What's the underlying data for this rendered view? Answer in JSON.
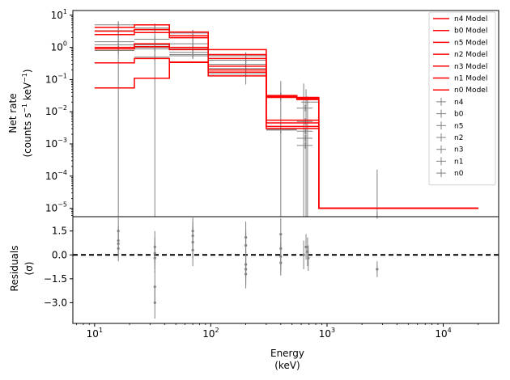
{
  "chart_data": [
    {
      "type": "line",
      "panel": "spectrum",
      "ylabel_line1": "Net rate",
      "ylabel_line2_parts": [
        "(counts s",
        "−1",
        " keV",
        "−1",
        ")"
      ],
      "xscale": "log",
      "yscale": "log",
      "xlim": [
        6.5,
        30000
      ],
      "ylim": [
        5.5e-06,
        14
      ],
      "x_ticks": [
        10,
        100,
        1000,
        10000
      ],
      "x_tick_labels": [
        [
          "10",
          "1"
        ],
        [
          "10",
          "2"
        ],
        [
          "10",
          "3"
        ],
        [
          "10",
          "4"
        ]
      ],
      "y_ticks": [
        1e-05,
        0.0001,
        0.001,
        0.01,
        0.1,
        1,
        10
      ],
      "y_tick_labels": [
        [
          "10",
          "−5"
        ],
        [
          "10",
          "−4"
        ],
        [
          "10",
          "−3"
        ],
        [
          "10",
          "−2"
        ],
        [
          "10",
          "−1"
        ],
        [
          "10",
          "0"
        ],
        [
          "10",
          "1"
        ]
      ],
      "bin_edges": [
        10,
        22,
        44,
        95,
        300,
        550,
        850,
        20000
      ],
      "legend_position": "top-right",
      "colors": {
        "model": "#ff0000",
        "data": "#808080"
      },
      "series": [
        {
          "name": "n4 Model",
          "values": [
            4.2,
            5.0,
            3.0,
            0.85,
            0.032,
            0.028,
            1e-05
          ]
        },
        {
          "name": "b0 Model",
          "values": [
            3.2,
            3.6,
            2.3,
            0.6,
            0.03,
            0.026,
            1e-05
          ]
        },
        {
          "name": "n5 Model",
          "values": [
            2.5,
            2.9,
            2.0,
            0.45,
            0.028,
            0.024,
            1e-05
          ]
        },
        {
          "name": "n2 Model",
          "values": [
            1.0,
            1.3,
            1.0,
            0.26,
            0.0055,
            0.0055,
            1e-05
          ]
        },
        {
          "name": "n3 Model",
          "values": [
            0.9,
            1.05,
            0.85,
            0.2,
            0.0045,
            0.0045,
            1e-05
          ]
        },
        {
          "name": "n1 Model",
          "values": [
            0.33,
            0.45,
            0.35,
            0.17,
            0.0035,
            0.0035,
            1e-05
          ]
        },
        {
          "name": "n0 Model",
          "values": [
            0.055,
            0.11,
            0.34,
            0.13,
            0.003,
            0.003,
            1e-05
          ]
        }
      ],
      "data_series": [
        {
          "name": "n4",
          "points": [
            [
              16,
              5.0,
              10,
              22
            ],
            [
              33,
              1.8,
              22,
              44
            ],
            [
              70,
              2.8,
              44,
              95
            ],
            [
              200,
              0.55,
              95,
              300
            ],
            [
              400,
              0.032,
              300,
              550
            ],
            [
              650,
              0.013,
              550,
              750
            ]
          ]
        },
        {
          "name": "b0",
          "points": [
            [
              16,
              3.3,
              10,
              22
            ],
            [
              33,
              4.0,
              22,
              44
            ],
            [
              70,
              1.3,
              44,
              95
            ],
            [
              200,
              0.4,
              95,
              300
            ],
            [
              400,
              0.03,
              300,
              550
            ],
            [
              680,
              0.02,
              600,
              850
            ]
          ]
        },
        {
          "name": "n5",
          "points": [
            [
              16,
              1.5,
              10,
              22
            ],
            [
              33,
              3.5,
              22,
              44
            ],
            [
              70,
              2.0,
              44,
              95
            ],
            [
              200,
              0.4,
              95,
              300
            ],
            [
              400,
              0.028,
              300,
              550
            ],
            [
              650,
              0.005,
              550,
              750
            ]
          ]
        },
        {
          "name": "n2",
          "points": [
            [
              16,
              1.2,
              10,
              22
            ],
            [
              33,
              0.9,
              22,
              44
            ],
            [
              70,
              0.9,
              44,
              95
            ],
            [
              200,
              0.3,
              95,
              300
            ],
            [
              400,
              0.0028,
              300,
              550
            ],
            [
              650,
              0.0015,
              550,
              750
            ]
          ]
        },
        {
          "name": "n3",
          "points": [
            [
              16,
              0.8,
              10,
              22
            ],
            [
              33,
              1.0,
              22,
              44
            ],
            [
              70,
              0.55,
              44,
              95
            ],
            [
              200,
              0.15,
              95,
              300
            ],
            [
              400,
              0.0027,
              300,
              550
            ],
            [
              650,
              0.0025,
              550,
              750
            ]
          ]
        },
        {
          "name": "n1",
          "points": [
            [
              16,
              2.5,
              10,
              22
            ],
            [
              33,
              0.5,
              22,
              44
            ],
            [
              70,
              0.6,
              44,
              95
            ],
            [
              200,
              0.22,
              95,
              300
            ],
            [
              400,
              0.028,
              300,
              550
            ],
            [
              650,
              0.0009,
              550,
              750
            ]
          ]
        },
        {
          "name": "n0",
          "points": [
            [
              16,
              0.9,
              10,
              22
            ],
            [
              33,
              1.2,
              22,
              44
            ],
            [
              70,
              0.7,
              44,
              95
            ],
            [
              200,
              0.2,
              95,
              300
            ],
            [
              400,
              0.03,
              300,
              550
            ],
            [
              2700,
              6e-06,
              2700,
              2700
            ]
          ]
        }
      ],
      "upper_limit": {
        "x": 2700,
        "y_top": 0.00016
      }
    },
    {
      "type": "scatter",
      "panel": "residuals",
      "ylabel_line1": "Residuals",
      "ylabel_line2": "(σ)",
      "xlabel_line1": "Energy",
      "xlabel_line2": "(keV)",
      "xscale": "log",
      "xlim": [
        6.5,
        30000
      ],
      "ylim": [
        -4.3,
        2.4
      ],
      "y_ticks": [
        1.5,
        0.0,
        -1.5,
        -3.0
      ],
      "y_tick_labels": [
        "1.5",
        "0.0",
        "−1.5",
        "−3.0"
      ],
      "zero_line": 0.0,
      "colors": {
        "points": "#808080",
        "zero_line": "#000000"
      },
      "points": [
        {
          "x": 16,
          "y": 1.5,
          "err": 0.9
        },
        {
          "x": 16,
          "y": 0.7,
          "err": 0.8
        },
        {
          "x": 16,
          "y": 0.4,
          "err": 0.8
        },
        {
          "x": 16,
          "y": 0.9,
          "err": 0.9
        },
        {
          "x": 33,
          "y": 0.5,
          "err": 1.0
        },
        {
          "x": 33,
          "y": 0.1,
          "err": 1.0
        },
        {
          "x": 33,
          "y": -0.2,
          "err": 0.9
        },
        {
          "x": 33,
          "y": -2.0,
          "err": 1.0
        },
        {
          "x": 33,
          "y": -3.0,
          "err": 1.0
        },
        {
          "x": 70,
          "y": 1.5,
          "err": 0.9
        },
        {
          "x": 70,
          "y": 1.2,
          "err": 0.9
        },
        {
          "x": 70,
          "y": 0.8,
          "err": 1.0
        },
        {
          "x": 70,
          "y": 0.3,
          "err": 1.0
        },
        {
          "x": 200,
          "y": 1.1,
          "err": 1.0
        },
        {
          "x": 200,
          "y": 0.6,
          "err": 0.9
        },
        {
          "x": 200,
          "y": -0.6,
          "err": 0.8
        },
        {
          "x": 200,
          "y": -0.9,
          "err": 0.9
        },
        {
          "x": 200,
          "y": -1.2,
          "err": 0.9
        },
        {
          "x": 400,
          "y": 1.3,
          "err": 1.0
        },
        {
          "x": 400,
          "y": 0.4,
          "err": 0.9
        },
        {
          "x": 400,
          "y": -0.1,
          "err": 0.9
        },
        {
          "x": 400,
          "y": -0.5,
          "err": 0.8
        },
        {
          "x": 630,
          "y": 0.0,
          "err": 0.9
        },
        {
          "x": 660,
          "y": 0.5,
          "err": 0.8
        },
        {
          "x": 680,
          "y": 0.2,
          "err": 0.9
        },
        {
          "x": 690,
          "y": -0.2,
          "err": 0.8
        },
        {
          "x": 2700,
          "y": -0.9,
          "err": 0.5
        }
      ]
    }
  ]
}
